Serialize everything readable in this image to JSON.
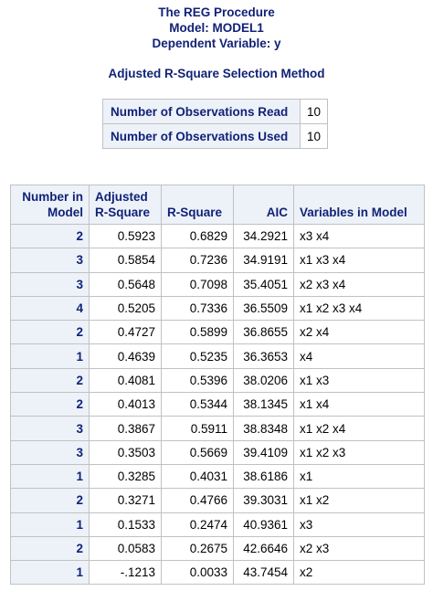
{
  "titles": {
    "line1": "The REG Procedure",
    "line2": "Model: MODEL1",
    "line3": "Dependent Variable: y",
    "method": "Adjusted R-Square Selection Method"
  },
  "observations": {
    "read_label": "Number of Observations Read",
    "read_value": "10",
    "used_label": "Number of Observations Used",
    "used_value": "10"
  },
  "table": {
    "headers": {
      "number_in_model_l1": "Number in",
      "number_in_model_l2": "Model",
      "adj_rsq_l1": "Adjusted",
      "adj_rsq_l2": "R-Square",
      "rsq": "R-Square",
      "aic": "AIC",
      "vars": "Variables in Model"
    },
    "rows": [
      {
        "n": "2",
        "adj": "0.5923",
        "rsq": "0.6829",
        "aic": "34.2921",
        "vars": "x3 x4"
      },
      {
        "n": "3",
        "adj": "0.5854",
        "rsq": "0.7236",
        "aic": "34.9191",
        "vars": "x1 x3 x4"
      },
      {
        "n": "3",
        "adj": "0.5648",
        "rsq": "0.7098",
        "aic": "35.4051",
        "vars": "x2 x3 x4"
      },
      {
        "n": "4",
        "adj": "0.5205",
        "rsq": "0.7336",
        "aic": "36.5509",
        "vars": "x1 x2 x3 x4"
      },
      {
        "n": "2",
        "adj": "0.4727",
        "rsq": "0.5899",
        "aic": "36.8655",
        "vars": "x2 x4"
      },
      {
        "n": "1",
        "adj": "0.4639",
        "rsq": "0.5235",
        "aic": "36.3653",
        "vars": "x4"
      },
      {
        "n": "2",
        "adj": "0.4081",
        "rsq": "0.5396",
        "aic": "38.0206",
        "vars": "x1 x3"
      },
      {
        "n": "2",
        "adj": "0.4013",
        "rsq": "0.5344",
        "aic": "38.1345",
        "vars": "x1 x4"
      },
      {
        "n": "3",
        "adj": "0.3867",
        "rsq": "0.5911",
        "aic": "38.8348",
        "vars": "x1 x2 x4"
      },
      {
        "n": "3",
        "adj": "0.3503",
        "rsq": "0.5669",
        "aic": "39.4109",
        "vars": "x1 x2 x3"
      },
      {
        "n": "1",
        "adj": "0.3285",
        "rsq": "0.4031",
        "aic": "38.6186",
        "vars": "x1"
      },
      {
        "n": "2",
        "adj": "0.3271",
        "rsq": "0.4766",
        "aic": "39.3031",
        "vars": "x1 x2"
      },
      {
        "n": "1",
        "adj": "0.1533",
        "rsq": "0.2474",
        "aic": "40.9361",
        "vars": "x3"
      },
      {
        "n": "2",
        "adj": "0.0583",
        "rsq": "0.2675",
        "aic": "42.6646",
        "vars": "x2 x3"
      },
      {
        "n": "1",
        "adj": "-.1213",
        "rsq": "0.0033",
        "aic": "43.7454",
        "vars": "x2"
      }
    ]
  }
}
